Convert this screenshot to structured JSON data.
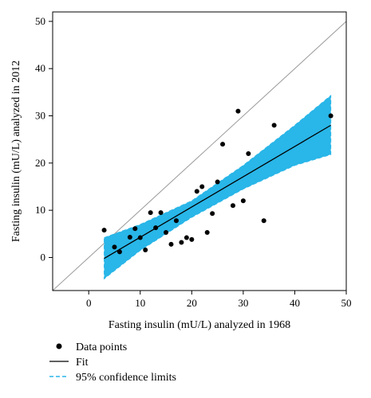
{
  "chart_data": {
    "type": "scatter",
    "xlabel": "Fasting insulin (mU/L) analyzed in 1968",
    "ylabel": "Fasting insulin (mU/L) analyzed in 2012",
    "xlim": [
      -7,
      50
    ],
    "ylim": [
      -7,
      52
    ],
    "xticks": [
      0,
      10,
      20,
      30,
      40,
      50
    ],
    "yticks": [
      0,
      10,
      20,
      30,
      40,
      50
    ],
    "grid": false,
    "legend_placement": "bottom-left",
    "identity_line": {
      "x": [
        -7,
        52
      ],
      "y": [
        -7,
        52
      ],
      "color": "#999999"
    },
    "fit": {
      "x": [
        3,
        47
      ],
      "y": [
        -0.2,
        28
      ]
    },
    "confidence_band": {
      "x": [
        3,
        10,
        20,
        30,
        40,
        47
      ],
      "lower": [
        -4.5,
        1.5,
        8.5,
        14.5,
        19.5,
        21.8
      ],
      "upper": [
        4.2,
        7.0,
        12.0,
        19.5,
        28.0,
        34.3
      ]
    },
    "series": [
      {
        "name": "Data points",
        "x": [
          3,
          5,
          6,
          8,
          9,
          10,
          11,
          12,
          13,
          14,
          15,
          16,
          17,
          18,
          19,
          20,
          21,
          22,
          23,
          24,
          25,
          26,
          28,
          29,
          30,
          31,
          34,
          36,
          47
        ],
        "y": [
          5.8,
          2.2,
          1.2,
          4.3,
          6.1,
          4.2,
          1.6,
          9.5,
          6.3,
          9.5,
          5.3,
          2.8,
          7.8,
          3.2,
          4.2,
          3.8,
          14.0,
          15.0,
          5.3,
          9.3,
          16.0,
          24.0,
          11.0,
          31.0,
          12.0,
          22.0,
          7.8,
          28.0,
          30.0
        ]
      }
    ],
    "colors": {
      "band": "#29b6e8",
      "fit": "#000000",
      "points": "#000000",
      "identity": "#999999"
    }
  },
  "legend": {
    "data_points": "Data points",
    "fit": "Fit",
    "confidence": "95% confidence limits"
  }
}
